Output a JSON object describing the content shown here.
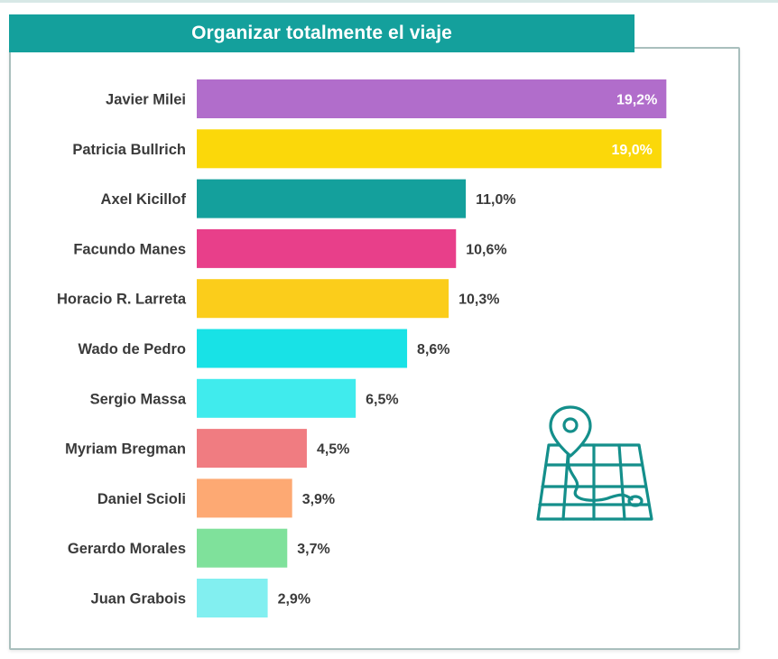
{
  "chart_data": {
    "type": "bar",
    "orientation": "horizontal",
    "title": "Organizar totalmente el viaje",
    "categories": [
      "Javier Milei",
      "Patricia Bullrich",
      "Axel Kicillof",
      "Facundo Manes",
      "Horacio R. Larreta",
      "Wado de Pedro",
      "Sergio Massa",
      "Myriam Bregman",
      "Daniel Scioli",
      "Gerardo Morales",
      "Juan Grabois"
    ],
    "values": [
      19.2,
      19.0,
      11.0,
      10.6,
      10.3,
      8.6,
      6.5,
      4.5,
      3.9,
      3.7,
      2.9
    ],
    "value_labels": [
      "19,2%",
      "19,0%",
      "11,0%",
      "10,6%",
      "10,3%",
      "8,6%",
      "6,5%",
      "4,5%",
      "3,9%",
      "3,7%",
      "2,9%"
    ],
    "colors": [
      "#b16dcb",
      "#fbd80a",
      "#14a09c",
      "#e83f8a",
      "#fbcd1b",
      "#18e2e6",
      "#40ebed",
      "#f07c81",
      "#fda973",
      "#7fe19b",
      "#82eff0"
    ],
    "label_inside": [
      true,
      true,
      false,
      false,
      false,
      false,
      false,
      false,
      false,
      false,
      false
    ],
    "grid": false,
    "legend": "none"
  },
  "theme": {
    "title_bar_color": "#14a09c",
    "icon_color": "#148f8b"
  },
  "icons": {
    "decor": "map-with-location-pin-icon"
  }
}
